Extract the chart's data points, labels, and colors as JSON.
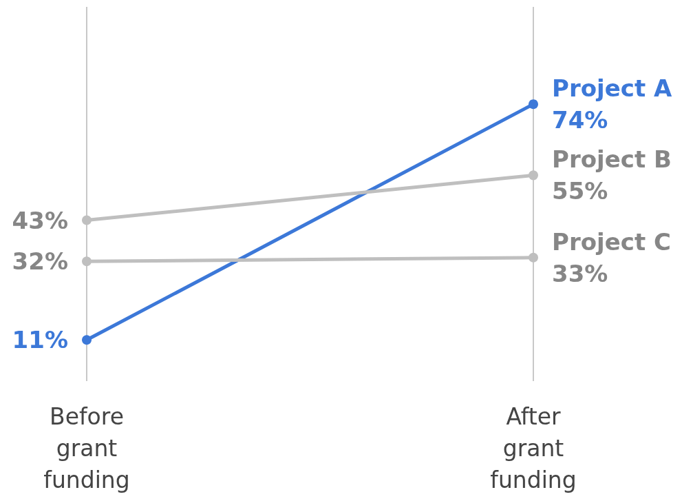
{
  "chart_data": {
    "type": "line",
    "categories": [
      "Before\ngrant\nfunding",
      "After\ngrant\nfunding"
    ],
    "series": [
      {
        "name": "Project A",
        "color": "#3c78d8",
        "values": [
          11,
          74
        ],
        "value_labels": [
          "11%",
          "74%"
        ]
      },
      {
        "name": "Project B",
        "color": "#bfbfbf",
        "values": [
          43,
          55
        ],
        "value_labels": [
          "43%",
          "55%"
        ]
      },
      {
        "name": "Project C",
        "color": "#bfbfbf",
        "values": [
          32,
          33
        ],
        "value_labels": [
          "32%",
          "33%"
        ]
      }
    ],
    "ylim": [
      0,
      100
    ],
    "grid": "x",
    "legend": false,
    "marker": "circle",
    "line_style": "solid"
  }
}
